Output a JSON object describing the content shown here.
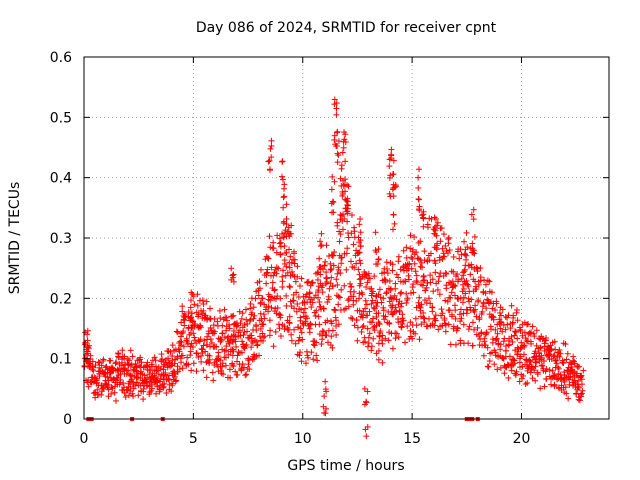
{
  "chart_data": {
    "type": "scatter",
    "title": "Day 086 of 2024, SRMTID for receiver cpnt",
    "xlabel": "GPS time / hours",
    "ylabel": "SRMTID / TECUs",
    "xlim": [
      0,
      24.0
    ],
    "ylim": [
      0,
      0.6
    ],
    "xticks": [
      0,
      5,
      10,
      15,
      20
    ],
    "yticks": [
      0,
      0.1,
      0.2,
      0.3,
      0.4,
      0.5,
      0.6
    ],
    "xtick_labels": [
      "0",
      "5",
      "10",
      "15",
      "20"
    ],
    "ytick_labels": [
      "0",
      "0.1",
      "0.2",
      "0.3",
      "0.4",
      "0.5",
      "0.6"
    ],
    "grid": true,
    "marker": "plus",
    "color": "#ff0000",
    "series_name": "SRMTID",
    "trend": {
      "x": [
        0.0,
        0.5,
        1.0,
        2.0,
        3.0,
        3.5,
        4.0,
        4.5,
        5.0,
        5.5,
        6.0,
        6.5,
        7.0,
        7.5,
        8.0,
        8.5,
        9.0,
        9.5,
        10.0,
        10.5,
        11.0,
        11.5,
        12.0,
        12.5,
        13.0,
        13.5,
        14.0,
        14.5,
        15.0,
        15.5,
        16.0,
        16.5,
        17.0,
        17.5,
        18.0,
        18.5,
        19.0,
        20.0,
        21.0,
        22.0,
        22.8
      ],
      "y": [
        0.12,
        0.06,
        0.07,
        0.075,
        0.065,
        0.07,
        0.09,
        0.13,
        0.14,
        0.14,
        0.13,
        0.12,
        0.12,
        0.13,
        0.17,
        0.22,
        0.23,
        0.21,
        0.16,
        0.17,
        0.2,
        0.22,
        0.3,
        0.2,
        0.17,
        0.16,
        0.19,
        0.2,
        0.22,
        0.23,
        0.25,
        0.22,
        0.19,
        0.22,
        0.2,
        0.16,
        0.13,
        0.12,
        0.1,
        0.08,
        0.06
      ]
    },
    "spikes": [
      {
        "x": 8.5,
        "y": 0.47
      },
      {
        "x": 9.1,
        "y": 0.43
      },
      {
        "x": 9.2,
        "y": 0.38
      },
      {
        "x": 11.5,
        "y": 0.53
      },
      {
        "x": 11.6,
        "y": 0.5
      },
      {
        "x": 11.9,
        "y": 0.48
      },
      {
        "x": 11.8,
        "y": 0.44
      },
      {
        "x": 12.0,
        "y": 0.4
      },
      {
        "x": 11.4,
        "y": 0.42
      },
      {
        "x": 14.1,
        "y": 0.46
      },
      {
        "x": 14.0,
        "y": 0.44
      },
      {
        "x": 14.2,
        "y": 0.39
      },
      {
        "x": 15.3,
        "y": 0.42
      },
      {
        "x": 15.5,
        "y": 0.35
      },
      {
        "x": 17.8,
        "y": 0.35
      },
      {
        "x": 17.4,
        "y": 0.3
      },
      {
        "x": 12.6,
        "y": 0.35
      },
      {
        "x": 13.4,
        "y": 0.33
      },
      {
        "x": 16.1,
        "y": 0.32
      },
      {
        "x": 9.4,
        "y": 0.33
      },
      {
        "x": 10.8,
        "y": 0.32
      },
      {
        "x": 6.8,
        "y": 0.25
      },
      {
        "x": 4.9,
        "y": 0.22
      },
      {
        "x": 0.1,
        "y": 0.15
      },
      {
        "x": 12.9,
        "y": 0.05
      },
      {
        "x": 11.0,
        "y": 0.07
      }
    ],
    "zero_markers_x": [
      0.2,
      0.35,
      2.2,
      3.6,
      17.5,
      17.6,
      17.75,
      18.0
    ]
  }
}
